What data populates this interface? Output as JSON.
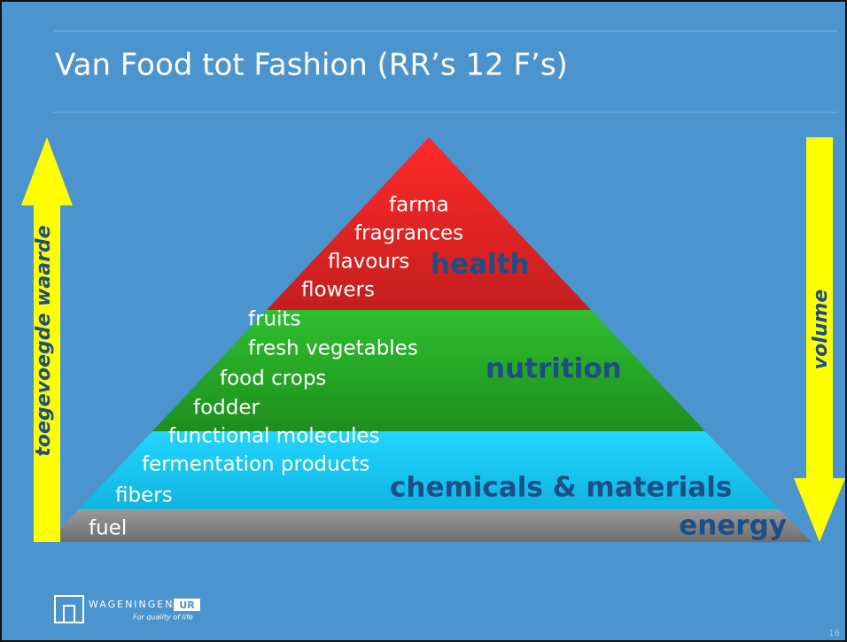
{
  "header": {
    "title": "Van Food tot Fashion (RR’s 12 F’s)"
  },
  "pyramid": {
    "levels": [
      {
        "label": "health",
        "items": [
          "farma",
          "fragrances",
          "flavours",
          "flowers"
        ]
      },
      {
        "label": "nutrition",
        "items": [
          "fruits",
          "fresh vegetables",
          "food crops",
          "fodder"
        ]
      },
      {
        "label": "chemicals & materials",
        "items": [
          "functional molecules",
          "fermentation products",
          "fibers"
        ]
      },
      {
        "label": "energy",
        "items": [
          "fuel"
        ]
      }
    ]
  },
  "arrows": {
    "up": "toegevoegde waarde",
    "down": "volume"
  },
  "footer": {
    "logo_name": "WAGENINGEN",
    "logo_suffix": "UR",
    "tagline": "For quality of life",
    "page_number": "16"
  }
}
